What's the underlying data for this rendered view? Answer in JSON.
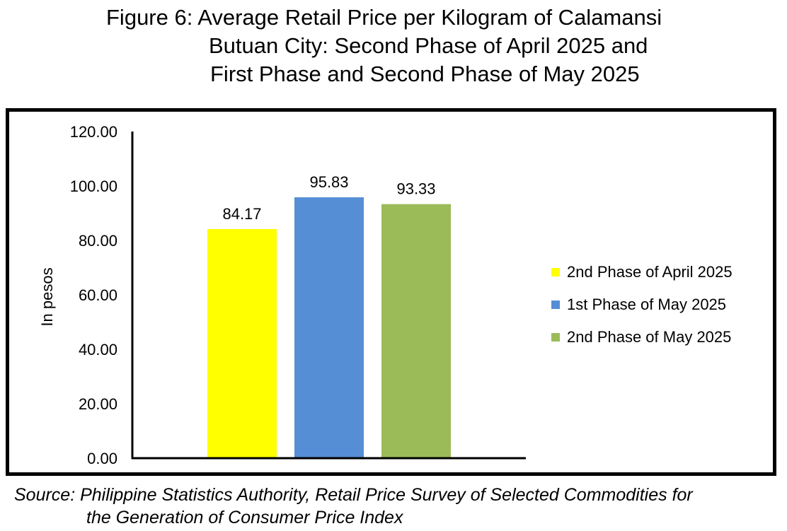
{
  "title": {
    "line1": "Figure 6: Average Retail Price per Kilogram of Calamansi",
    "line2": "Butuan City: Second Phase of April 2025 and",
    "line3": "First Phase and Second Phase of May 2025"
  },
  "source": {
    "line1": "Source: Philippine Statistics Authority, Retail Price Survey of Selected Commodities for",
    "line2": "the Generation of Consumer Price Index"
  },
  "chart_data": {
    "type": "bar",
    "title": "Figure 6: Average Retail Price per Kilogram of Calamansi Butuan City: Second Phase of April 2025 and First Phase and Second Phase of May 2025",
    "ylabel": "In pesos",
    "xlabel": "",
    "ylim": [
      0,
      120
    ],
    "yticks": [
      "0.00",
      "20.00",
      "40.00",
      "60.00",
      "80.00",
      "100.00",
      "120.00"
    ],
    "grid": false,
    "legend_position": "right",
    "series": [
      {
        "name": "2nd Phase of April 2025",
        "value": 84.17,
        "label": "84.17",
        "color": "#FFFF00"
      },
      {
        "name": "1st Phase of May 2025",
        "value": 95.83,
        "label": "95.83",
        "color": "#558ED5"
      },
      {
        "name": "2nd Phase of May 2025",
        "value": 93.33,
        "label": "93.33",
        "color": "#9BBB59"
      }
    ]
  }
}
